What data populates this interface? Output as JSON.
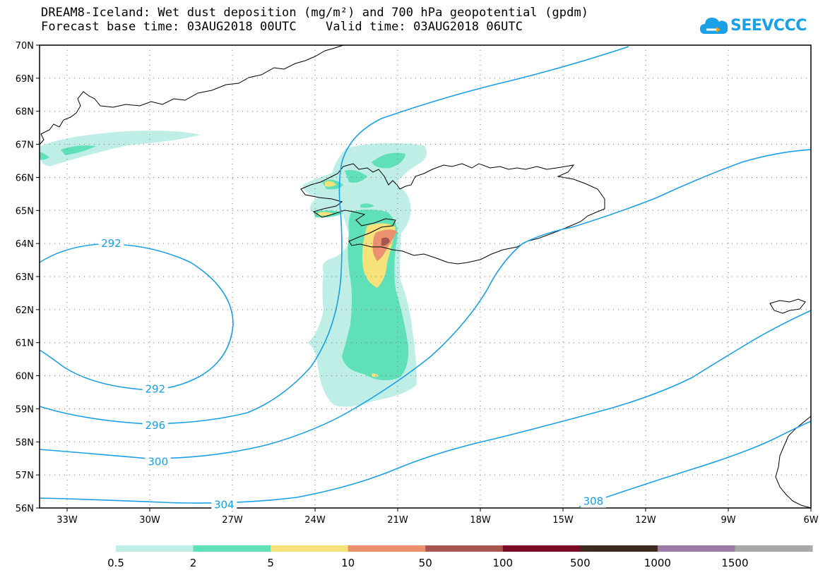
{
  "header": {
    "title_line1": "DREAM8-Iceland: Wet dust deposition (mg/m²) and 700 hPa geopotential (gpdm)",
    "title_line2": "Forecast base time: 03AUG2018 00UTC    Valid time: 03AUG2018 06UTC"
  },
  "logo": {
    "text": "SEEVCCC",
    "icon": "cloud-icon",
    "color": "#1aa0e6"
  },
  "map": {
    "lon_range": [
      -34,
      -6
    ],
    "lat_range": [
      56,
      70
    ],
    "lat_ticks": [
      {
        "value": 70,
        "label": "70N"
      },
      {
        "value": 69,
        "label": "69N"
      },
      {
        "value": 68,
        "label": "68N"
      },
      {
        "value": 67,
        "label": "67N"
      },
      {
        "value": 66,
        "label": "66N"
      },
      {
        "value": 65,
        "label": "65N"
      },
      {
        "value": 64,
        "label": "64N"
      },
      {
        "value": 63,
        "label": "63N"
      },
      {
        "value": 62,
        "label": "62N"
      },
      {
        "value": 61,
        "label": "61N"
      },
      {
        "value": 60,
        "label": "60N"
      },
      {
        "value": 59,
        "label": "59N"
      },
      {
        "value": 58,
        "label": "58N"
      },
      {
        "value": 57,
        "label": "57N"
      },
      {
        "value": 56,
        "label": "56N"
      }
    ],
    "lon_ticks": [
      {
        "value": -33,
        "label": "33W"
      },
      {
        "value": -30,
        "label": "30W"
      },
      {
        "value": -27,
        "label": "27W"
      },
      {
        "value": -24,
        "label": "24W"
      },
      {
        "value": -21,
        "label": "21W"
      },
      {
        "value": -18,
        "label": "18W"
      },
      {
        "value": -15,
        "label": "15W"
      },
      {
        "value": -12,
        "label": "12W"
      },
      {
        "value": -9,
        "label": "9W"
      },
      {
        "value": -6,
        "label": "6W"
      }
    ],
    "contour_color": "#1aa0e6",
    "contour_labels": [
      {
        "text": "292",
        "lon": -31.4,
        "lat": 64.0
      },
      {
        "text": "292",
        "lon": -29.8,
        "lat": 59.6
      },
      {
        "text": "296",
        "lon": -29.8,
        "lat": 58.5
      },
      {
        "text": "300",
        "lon": -29.7,
        "lat": 57.4
      },
      {
        "text": "304",
        "lon": -27.3,
        "lat": 56.1
      },
      {
        "text": "308",
        "lon": -13.9,
        "lat": 56.2
      }
    ]
  },
  "legend": {
    "bins": [
      {
        "label": "0.5",
        "color": "#bfeee6"
      },
      {
        "label": "2",
        "color": "#5fe0b8"
      },
      {
        "label": "5",
        "color": "#f5e27a"
      },
      {
        "label": "10",
        "color": "#ec9170"
      },
      {
        "label": "50",
        "color": "#a85550"
      },
      {
        "label": "100",
        "color": "#7a0a26"
      },
      {
        "label": "500",
        "color": "#3c2a1e"
      },
      {
        "label": "1000",
        "color": "#9b7aa8"
      },
      {
        "label": "1500",
        "color": "#a8a8a8"
      }
    ]
  }
}
